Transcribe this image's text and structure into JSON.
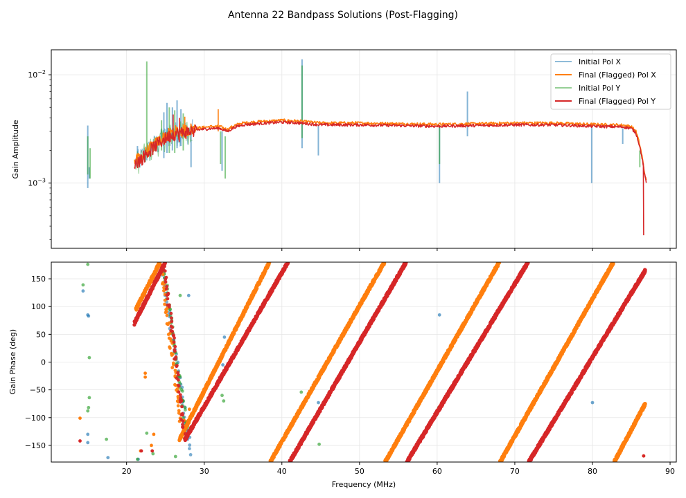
{
  "chart_data": {
    "title": "Antenna 22 Bandpass Solutions (Post-Flagging)",
    "type": "line",
    "colors": {
      "initial_x": "#1f77b4",
      "final_x": "#ff7f0e",
      "initial_y": "#2ca02c",
      "final_y": "#d62728",
      "grid": "#e6e6e6"
    },
    "shared_x": {
      "label": "Frequency (MHz)",
      "xlim": [
        10.3,
        90.8
      ],
      "ticks": [
        20,
        30,
        40,
        50,
        60,
        70,
        80,
        90
      ],
      "tick_labels": [
        "20",
        "30",
        "40",
        "50",
        "60",
        "70",
        "80",
        "90"
      ]
    },
    "amplitude_panel": {
      "type": "line",
      "ylabel": "Gain Amplitude",
      "yscale": "log",
      "ylim": [
        0.00025,
        0.017
      ],
      "y_major_ticks": [
        0.001,
        0.01
      ],
      "y_tick_labels": [
        {
          "base": "10",
          "exp": "−3"
        },
        {
          "base": "10",
          "exp": "−2"
        }
      ],
      "legend": {
        "location": "upper right",
        "entries": [
          "Initial Pol X",
          "Final (Flagged) Pol X",
          "Initial Pol Y",
          "Final (Flagged) Pol Y"
        ]
      },
      "baseline_profile": [
        [
          21.0,
          0.0015
        ],
        [
          22.0,
          0.0017
        ],
        [
          23.0,
          0.002
        ],
        [
          24.0,
          0.0023
        ],
        [
          25.0,
          0.0026
        ],
        [
          26.0,
          0.00285
        ],
        [
          27.0,
          0.0029
        ],
        [
          28.0,
          0.003
        ],
        [
          29.0,
          0.0031
        ],
        [
          30.0,
          0.00315
        ],
        [
          31.0,
          0.0032
        ],
        [
          32.0,
          0.0032
        ],
        [
          33.0,
          0.003
        ],
        [
          34.0,
          0.0033
        ],
        [
          35.0,
          0.00345
        ],
        [
          37.0,
          0.00355
        ],
        [
          40.0,
          0.00365
        ],
        [
          42.0,
          0.0036
        ],
        [
          45.0,
          0.00345
        ],
        [
          50.0,
          0.00345
        ],
        [
          55.0,
          0.0034
        ],
        [
          60.0,
          0.00335
        ],
        [
          65.0,
          0.0034
        ],
        [
          70.0,
          0.00345
        ],
        [
          75.0,
          0.00345
        ],
        [
          80.0,
          0.00335
        ],
        [
          84.0,
          0.0033
        ],
        [
          85.0,
          0.0032
        ],
        [
          85.6,
          0.0029
        ],
        [
          86.2,
          0.002
        ],
        [
          86.7,
          0.0012
        ],
        [
          87.0,
          0.00095
        ]
      ],
      "final_dip": {
        "x": 86.6,
        "y": 0.00033
      },
      "series": [
        {
          "name": "Initial Pol X",
          "kind": "spikes",
          "points": [
            [
              15.0,
              0.0009,
              0.0034
            ],
            [
              15.2,
              0.0011,
              0.0014
            ],
            [
              21.4,
              0.0015,
              0.0022
            ],
            [
              24.8,
              0.0017,
              0.0045
            ],
            [
              25.2,
              0.0019,
              0.0055
            ],
            [
              25.9,
              0.002,
              0.005
            ],
            [
              26.5,
              0.0021,
              0.0058
            ],
            [
              27.0,
              0.0022,
              0.0048
            ],
            [
              28.3,
              0.0014,
              0.0031
            ],
            [
              32.3,
              0.0013,
              0.003
            ],
            [
              42.6,
              0.0021,
              0.0139
            ],
            [
              44.7,
              0.0018,
              0.0034
            ],
            [
              60.3,
              0.001,
              0.0034
            ],
            [
              63.9,
              0.0027,
              0.007
            ],
            [
              79.9,
              0.001,
              0.0034
            ],
            [
              83.9,
              0.0023,
              0.0032
            ]
          ]
        },
        {
          "name": "Final (Flagged) Pol X",
          "kind": "profile",
          "scale": 1.04,
          "spikes": [
            [
              31.8,
              0.003,
              0.0048
            ],
            [
              27.5,
              0.0026,
              0.0041
            ]
          ]
        },
        {
          "name": "Initial Pol Y",
          "kind": "spikes",
          "points": [
            [
              15.0,
              0.0012,
              0.0027
            ],
            [
              15.3,
              0.0011,
              0.0021
            ],
            [
              22.6,
              0.0018,
              0.0133
            ],
            [
              24.5,
              0.002,
              0.0038
            ],
            [
              25.5,
              0.0019,
              0.005
            ],
            [
              26.2,
              0.0019,
              0.0047
            ],
            [
              27.3,
              0.002,
              0.0044
            ],
            [
              32.1,
              0.0015,
              0.003
            ],
            [
              32.7,
              0.0011,
              0.0027
            ],
            [
              42.6,
              0.0026,
              0.0122
            ],
            [
              60.3,
              0.0015,
              0.0033
            ],
            [
              86.1,
              0.0014,
              0.002
            ]
          ]
        },
        {
          "name": "Final (Flagged) Pol Y",
          "kind": "profile",
          "scale": 1.0,
          "spikes": [
            [
              26.0,
              0.0025,
              0.0043
            ],
            [
              26.8,
              0.0024,
              0.004
            ]
          ]
        }
      ]
    },
    "phase_panel": {
      "type": "scatter",
      "ylabel": "Gain Phase (deg)",
      "ylim": [
        -180,
        180
      ],
      "y_ticks": [
        -150,
        -100,
        -50,
        0,
        50,
        100,
        150
      ],
      "y_tick_labels": [
        "−150",
        "−100",
        "−50",
        "0",
        "50",
        "100",
        "150"
      ],
      "wrap_bands": [
        {
          "series": "Final (Flagged) Pol X",
          "x_start": 21.2,
          "y_start": 95,
          "x_end": 24.3,
          "y_end": 180
        },
        {
          "series": "Final (Flagged) Pol X",
          "x_start": 26.8,
          "y_start": -140,
          "x_end": 38.4,
          "y_end": 180
        },
        {
          "series": "Final (Flagged) Pol X",
          "x_start": 38.5,
          "y_start": -180,
          "x_end": 53.2,
          "y_end": 180
        },
        {
          "series": "Final (Flagged) Pol X",
          "x_start": 53.3,
          "y_start": -180,
          "x_end": 68.0,
          "y_end": 180
        },
        {
          "series": "Final (Flagged) Pol X",
          "x_start": 68.1,
          "y_start": -180,
          "x_end": 82.7,
          "y_end": 180
        },
        {
          "series": "Final (Flagged) Pol X",
          "x_start": 82.8,
          "y_start": -180,
          "x_end": 86.8,
          "y_end": -75
        },
        {
          "series": "Final (Flagged) Pol Y",
          "x_start": 21.0,
          "y_start": 70,
          "x_end": 25.0,
          "y_end": 180
        },
        {
          "series": "Final (Flagged) Pol Y",
          "x_start": 27.5,
          "y_start": -140,
          "x_end": 40.8,
          "y_end": 180
        },
        {
          "series": "Final (Flagged) Pol Y",
          "x_start": 41.0,
          "y_start": -180,
          "x_end": 56.0,
          "y_end": 180
        },
        {
          "series": "Final (Flagged) Pol Y",
          "x_start": 56.1,
          "y_start": -180,
          "x_end": 71.7,
          "y_end": 180
        },
        {
          "series": "Final (Flagged) Pol Y",
          "x_start": 71.8,
          "y_start": -180,
          "x_end": 86.8,
          "y_end": 165
        }
      ],
      "steep_bands": [
        {
          "series": "Final (Flagged) Pol X",
          "x_start": 24.3,
          "y_start": 180,
          "x_end": 27.0,
          "y_end": -110
        },
        {
          "series": "Final (Flagged) Pol Y",
          "x_start": 24.8,
          "y_start": 175,
          "x_end": 27.4,
          "y_end": -125
        },
        {
          "series": "Initial Pol X",
          "x_start": 24.5,
          "y_start": 170,
          "x_end": 28.2,
          "y_end": -160
        },
        {
          "series": "Initial Pol Y",
          "x_start": 24.7,
          "y_start": 175,
          "x_end": 27.8,
          "y_end": -130
        }
      ],
      "outliers": [
        {
          "series": "Initial Pol X",
          "points": [
            [
              14.4,
              128
            ],
            [
              15.0,
              85
            ],
            [
              15.1,
              83
            ],
            [
              15.0,
              -130
            ],
            [
              15.0,
              -145
            ],
            [
              17.6,
              -172
            ],
            [
              21.5,
              -175
            ],
            [
              28.0,
              120
            ],
            [
              32.4,
              -5
            ],
            [
              32.6,
              45
            ],
            [
              44.7,
              -73
            ],
            [
              60.3,
              85
            ],
            [
              80.0,
              -73
            ]
          ]
        },
        {
          "series": "Final (Flagged) Pol X",
          "points": [
            [
              14.0,
              -101
            ],
            [
              22.4,
              -20
            ],
            [
              22.4,
              -27
            ],
            [
              21.8,
              -160
            ],
            [
              23.5,
              -130
            ],
            [
              23.2,
              -150
            ],
            [
              28.1,
              -85
            ],
            [
              27.4,
              -105
            ],
            [
              86.6,
              -169
            ]
          ]
        },
        {
          "series": "Initial Pol Y",
          "points": [
            [
              14.4,
              139
            ],
            [
              15.0,
              176
            ],
            [
              15.2,
              8
            ],
            [
              15.2,
              -64
            ],
            [
              15.1,
              -82
            ],
            [
              15.0,
              -88
            ],
            [
              17.4,
              -139
            ],
            [
              21.4,
              -175
            ],
            [
              22.6,
              -128
            ],
            [
              23.4,
              -165
            ],
            [
              26.3,
              -170
            ],
            [
              26.9,
              120
            ],
            [
              32.5,
              -70
            ],
            [
              32.3,
              -60
            ],
            [
              42.5,
              -54
            ],
            [
              44.8,
              -148
            ],
            [
              60.2,
              -82
            ]
          ]
        },
        {
          "series": "Final (Flagged) Pol Y",
          "points": [
            [
              14.0,
              -142
            ],
            [
              21.9,
              -160
            ],
            [
              23.3,
              -160
            ],
            [
              27.2,
              -95
            ],
            [
              32.0,
              -28
            ],
            [
              86.6,
              -169
            ]
          ]
        }
      ]
    }
  }
}
